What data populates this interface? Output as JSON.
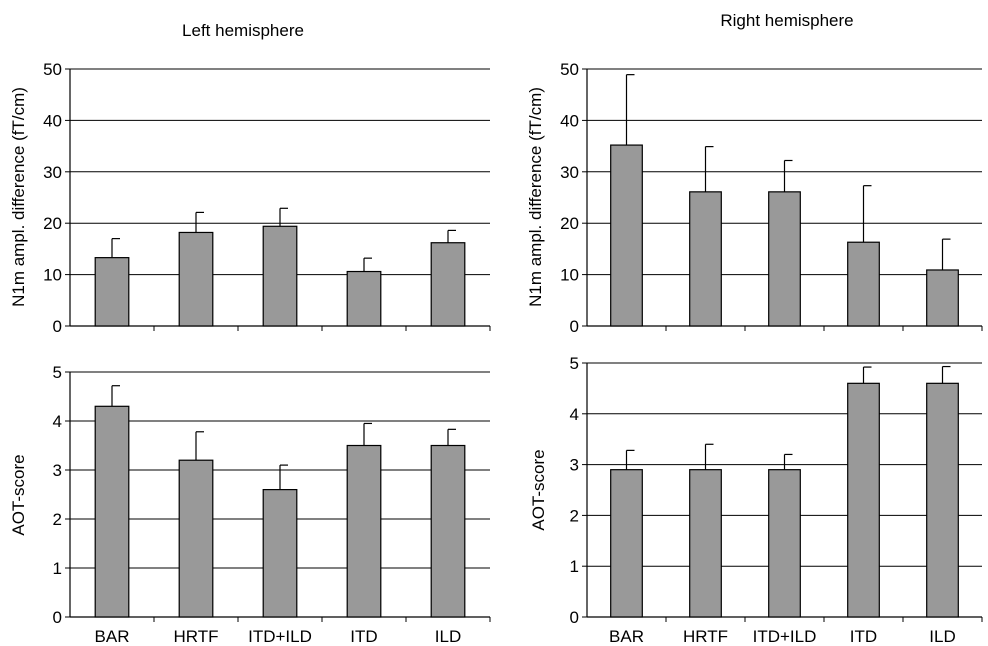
{
  "chart_data": [
    {
      "type": "bar",
      "title": "Left hemisphere",
      "ylabel": "N1m ampl. difference (fT/cm)",
      "ylim": [
        0,
        50
      ],
      "yticks": [
        0,
        10,
        20,
        30,
        40,
        50
      ],
      "categories": [
        "BAR",
        "HRTF",
        "ITD+ILD",
        "ITD",
        "ILD"
      ],
      "values": [
        13.3,
        18.2,
        19.4,
        10.6,
        16.2
      ],
      "errors": [
        3.7,
        3.9,
        3.5,
        2.6,
        2.4
      ],
      "bar_color": "#999999",
      "grid": true
    },
    {
      "type": "bar",
      "title": "Right hemisphere",
      "ylabel": "N1m ampl. difference (fT/cm)",
      "ylim": [
        0,
        50
      ],
      "yticks": [
        0,
        10,
        20,
        30,
        40,
        50
      ],
      "categories": [
        "BAR",
        "HRTF",
        "ITD+ILD",
        "ITD",
        "ILD"
      ],
      "values": [
        35.2,
        26.1,
        26.1,
        16.3,
        10.9
      ],
      "errors": [
        13.7,
        8.8,
        6.1,
        11.0,
        6.0
      ],
      "bar_color": "#999999",
      "grid": true
    },
    {
      "type": "bar",
      "title": "",
      "ylabel": "AOT-score",
      "ylim": [
        0,
        5
      ],
      "yticks": [
        0,
        1,
        2,
        3,
        4,
        5
      ],
      "categories": [
        "BAR",
        "HRTF",
        "ITD+ILD",
        "ITD",
        "ILD"
      ],
      "values": [
        4.3,
        3.2,
        2.6,
        3.5,
        3.5
      ],
      "errors": [
        0.42,
        0.58,
        0.5,
        0.45,
        0.33
      ],
      "bar_color": "#999999",
      "grid": true
    },
    {
      "type": "bar",
      "title": "",
      "ylabel": "AOT-score",
      "ylim": [
        0,
        5
      ],
      "yticks": [
        0,
        1,
        2,
        3,
        4,
        5
      ],
      "categories": [
        "BAR",
        "HRTF",
        "ITD+ILD",
        "ITD",
        "ILD"
      ],
      "values": [
        2.9,
        2.9,
        2.9,
        4.6,
        4.6
      ],
      "errors": [
        0.38,
        0.5,
        0.3,
        0.32,
        0.33
      ],
      "bar_color": "#999999",
      "grid": true
    }
  ]
}
